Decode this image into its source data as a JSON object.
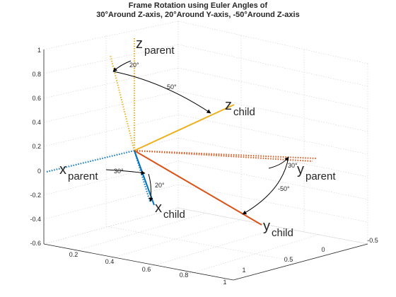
{
  "chart_data": {
    "type": "3d-line",
    "title": "Frame Rotation using Euler Angles of",
    "subtitle": "30°Around Z-axis, 20°Around Y-axis, -50°Around Z-axis",
    "xlim": [
      0,
      1
    ],
    "ylim": [
      -0.6,
      1
    ],
    "zlim": [
      -0.6,
      1
    ],
    "xticks": [
      "0.2",
      "0.4",
      "0.6",
      "0.8",
      "1"
    ],
    "yticks": [
      "0",
      "0.5",
      "1",
      "-0.5"
    ],
    "zticks": [
      "1",
      "0.8",
      "0.6",
      "0.4",
      "0.2",
      "0",
      "-0.2",
      "-0.4",
      "-0.6"
    ],
    "grid": true,
    "colors": {
      "x": "#0072BD",
      "y": "#D95319",
      "z": "#EDB120",
      "axes": "#262626",
      "grid": "#d0d0d0"
    },
    "series": [
      {
        "name": "x_parent",
        "style": "dotted",
        "color": "x"
      },
      {
        "name": "y_parent",
        "style": "dotted",
        "color": "y"
      },
      {
        "name": "z_parent",
        "style": "dotted",
        "color": "z"
      },
      {
        "name": "x_child",
        "style": "solid",
        "color": "x"
      },
      {
        "name": "y_child",
        "style": "solid",
        "color": "y"
      },
      {
        "name": "z_child",
        "style": "solid",
        "color": "z"
      }
    ],
    "labels": {
      "x_parent": {
        "main": "x",
        "sub": "parent"
      },
      "y_parent": {
        "main": "y",
        "sub": "parent"
      },
      "z_parent": {
        "main": "z",
        "sub": "parent"
      },
      "x_child": {
        "main": "x",
        "sub": "child"
      },
      "y_child": {
        "main": "y",
        "sub": "child"
      },
      "z_child": {
        "main": "z",
        "sub": "child"
      }
    },
    "angle_annotations": [
      {
        "text": "30°",
        "about": "x-arc"
      },
      {
        "text": "20°",
        "about": "x-arc"
      },
      {
        "text": "20°",
        "about": "z-arc"
      },
      {
        "text": "50°",
        "about": "z-arc"
      },
      {
        "text": "30°",
        "about": "y-arc"
      },
      {
        "text": "-50°",
        "about": "y-arc"
      }
    ]
  }
}
